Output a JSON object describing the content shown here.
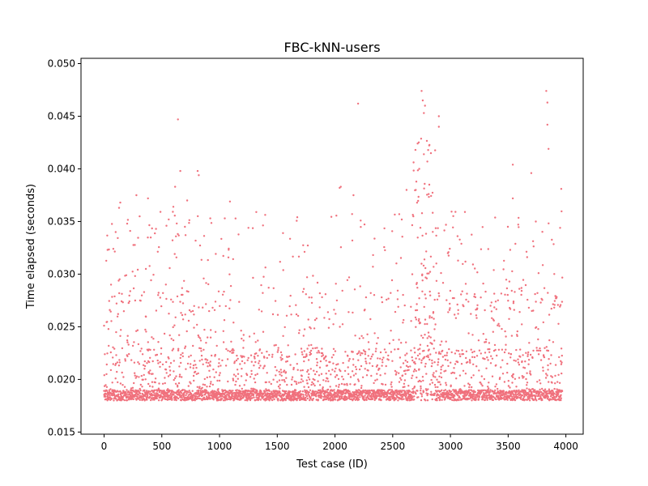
{
  "chart_data": {
    "type": "scatter",
    "title": "FBC-kNN-users",
    "xlabel": "Test case (ID)",
    "ylabel": "Time elapsed (seconds)",
    "xlim": [
      -200,
      4150
    ],
    "ylim": [
      0.0148,
      0.0505
    ],
    "xticks": [
      0,
      500,
      1000,
      1500,
      2000,
      2500,
      3000,
      3500,
      4000
    ],
    "xtick_labels": [
      "0",
      "500",
      "1000",
      "1500",
      "2000",
      "2500",
      "3000",
      "3500",
      "4000"
    ],
    "yticks": [
      0.015,
      0.02,
      0.025,
      0.03,
      0.035,
      0.04,
      0.045,
      0.05
    ],
    "ytick_labels": [
      "0.015",
      "0.020",
      "0.025",
      "0.030",
      "0.035",
      "0.040",
      "0.045",
      "0.050"
    ],
    "grid": false,
    "legend": "none",
    "marker_color": "#f0717d",
    "total_points": 3960,
    "series": [
      {
        "points": [
          [
            0,
            0.0251
          ],
          [
            30,
            0.0323
          ],
          [
            60,
            0.029
          ],
          [
            80,
            0.0324
          ],
          [
            100,
            0.034
          ],
          [
            130,
            0.0363
          ],
          [
            140,
            0.0368
          ],
          [
            200,
            0.0348
          ],
          [
            280,
            0.0375
          ],
          [
            380,
            0.0372
          ],
          [
            450,
            0.0343
          ],
          [
            540,
            0.0346
          ],
          [
            560,
            0.0352
          ],
          [
            600,
            0.0364
          ],
          [
            615,
            0.0383
          ],
          [
            640,
            0.0447
          ],
          [
            660,
            0.0398
          ],
          [
            700,
            0.0345
          ],
          [
            720,
            0.037
          ],
          [
            810,
            0.0398
          ],
          [
            820,
            0.0394
          ],
          [
            920,
            0.0353
          ],
          [
            1090,
            0.0369
          ],
          [
            1250,
            0.0344
          ],
          [
            2040,
            0.0382
          ],
          [
            2050,
            0.0383
          ],
          [
            2160,
            0.0375
          ],
          [
            2200,
            0.0462
          ],
          [
            2620,
            0.038
          ],
          [
            2700,
            0.038
          ],
          [
            2730,
            0.04
          ],
          [
            2750,
            0.0474
          ],
          [
            2760,
            0.0465
          ],
          [
            2770,
            0.0453
          ],
          [
            2780,
            0.046
          ],
          [
            2800,
            0.0407
          ],
          [
            2900,
            0.045
          ],
          [
            2900,
            0.044
          ],
          [
            3540,
            0.0404
          ],
          [
            3540,
            0.0372
          ],
          [
            3700,
            0.0396
          ],
          [
            3830,
            0.0474
          ],
          [
            3840,
            0.0463
          ],
          [
            3840,
            0.0442
          ],
          [
            3850,
            0.0419
          ],
          [
            3960,
            0.0381
          ],
          [
            3950,
            0.0344
          ]
        ]
      }
    ]
  }
}
